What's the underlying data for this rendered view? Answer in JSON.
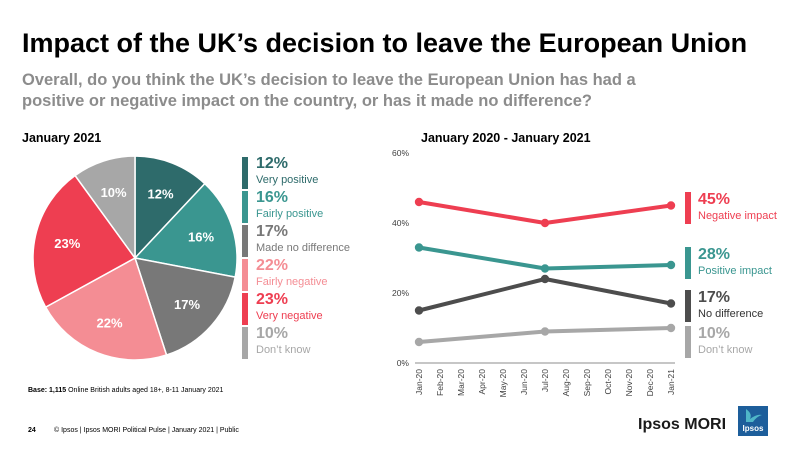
{
  "title": "Impact of the UK’s decision to leave the European Union",
  "subtitle": "Overall, do you think the UK’s decision to leave the European Union has had a positive or negative impact on the country, or has it made no difference?",
  "footer": {
    "base_label": "Base: 1,115",
    "base_text": "Online British adults aged 18+, 8-11 January 2021",
    "page_number": "24",
    "copyright": "© Ipsos | Ipsos MORI Political Pulse | January 2021 | Public",
    "brand": "Ipsos MORI",
    "logo_text": "Ipsos"
  },
  "chart_data": [
    {
      "type": "pie",
      "title": "January 2021",
      "slices": [
        {
          "label": "Very positive",
          "value": 12,
          "display": "12%",
          "color": "#2e6b6b",
          "text_color": "#2e6b6b"
        },
        {
          "label": "Fairly positive",
          "value": 16,
          "display": "16%",
          "color": "#3a9690",
          "text_color": "#3a9690"
        },
        {
          "label": "Made no difference",
          "value": 17,
          "display": "17%",
          "color": "#787878",
          "text_color": "#787878"
        },
        {
          "label": "Fairly negative",
          "value": 22,
          "display": "22%",
          "color": "#f48d94",
          "text_color": "#f48d94"
        },
        {
          "label": "Very negative",
          "value": 23,
          "display": "23%",
          "color": "#ee3e51",
          "text_color": "#ee3e51"
        },
        {
          "label": "Don’t know",
          "value": 10,
          "display": "10%",
          "color": "#a7a7a7",
          "text_color": "#a7a7a7"
        }
      ]
    },
    {
      "type": "line",
      "title": "January 2020 - January 2021",
      "x": [
        "Jan-20",
        "Feb-20",
        "Mar-20",
        "Apr-20",
        "May-20",
        "Jun-20",
        "Jul-20",
        "Aug-20",
        "Sep-20",
        "Oct-20",
        "Nov-20",
        "Dec-20",
        "Jan-21"
      ],
      "ylim": [
        0,
        60
      ],
      "yticks": [
        0,
        20,
        40,
        60
      ],
      "ytick_labels": [
        "0%",
        "20%",
        "40%",
        "60%"
      ],
      "series": [
        {
          "name": "Negative impact",
          "color": "#ee3e51",
          "points": [
            {
              "x": "Jan-20",
              "y": 46
            },
            {
              "x": "Jul-20",
              "y": 40
            },
            {
              "x": "Jan-21",
              "y": 45
            }
          ],
          "end_label": "45%"
        },
        {
          "name": "Positive impact",
          "color": "#3a9690",
          "points": [
            {
              "x": "Jan-20",
              "y": 33
            },
            {
              "x": "Jul-20",
              "y": 27
            },
            {
              "x": "Jan-21",
              "y": 28
            }
          ],
          "end_label": "28%"
        },
        {
          "name": "No difference",
          "color": "#4d4d4d",
          "points": [
            {
              "x": "Jan-20",
              "y": 15
            },
            {
              "x": "Jul-20",
              "y": 24
            },
            {
              "x": "Jan-21",
              "y": 17
            }
          ],
          "end_label": "17%"
        },
        {
          "name": "Don’t know",
          "color": "#a7a7a7",
          "points": [
            {
              "x": "Jan-20",
              "y": 6
            },
            {
              "x": "Jul-20",
              "y": 9
            },
            {
              "x": "Jan-21",
              "y": 10
            }
          ],
          "end_label": "10%"
        }
      ]
    }
  ]
}
